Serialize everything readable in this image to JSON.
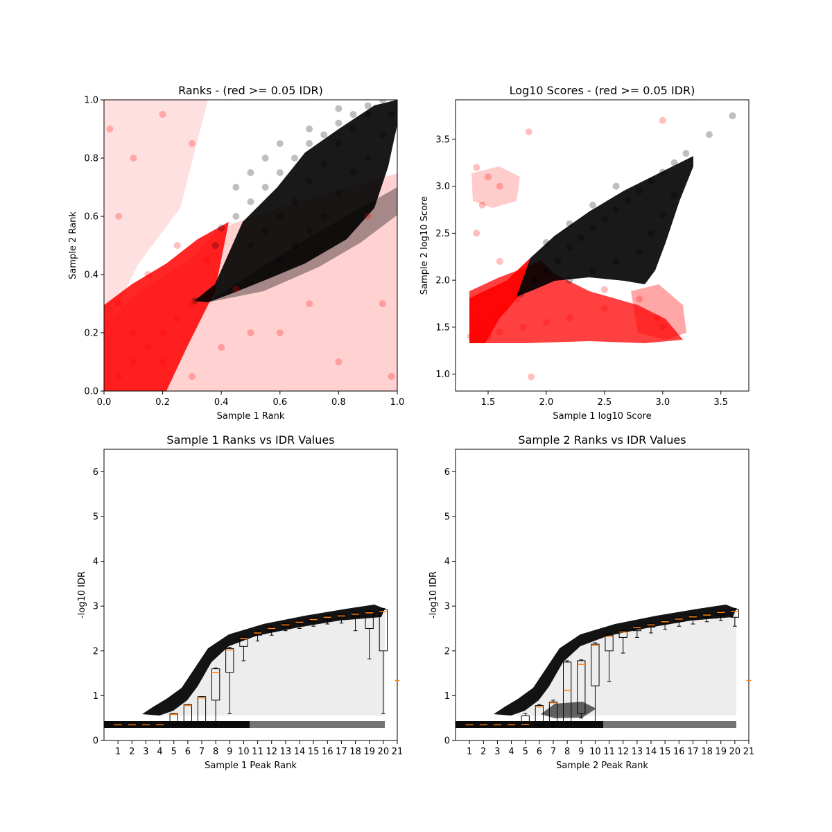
{
  "chart_data": [
    {
      "id": "ranks",
      "type": "scatter",
      "title": "Ranks - (red >= 0.05 IDR)",
      "xlabel": "Sample 1 Rank",
      "ylabel": "Sample 2 Rank",
      "xlim": [
        0.0,
        1.0
      ],
      "ylim": [
        0.0,
        1.0
      ],
      "xticks": [
        "0.0",
        "0.2",
        "0.4",
        "0.6",
        "0.8",
        "1.0"
      ],
      "yticks": [
        "0.0",
        "0.2",
        "0.4",
        "0.6",
        "0.8",
        "1.0"
      ],
      "colors": {
        "pass": "#000000",
        "fail": "#ff0000"
      },
      "series": [
        {
          "color": "#000000",
          "points": [
            [
              0.31,
              0.31
            ],
            [
              0.38,
              0.5
            ],
            [
              0.4,
              0.56
            ],
            [
              0.45,
              0.6
            ],
            [
              0.5,
              0.65
            ],
            [
              0.55,
              0.7
            ],
            [
              0.6,
              0.75
            ],
            [
              0.65,
              0.8
            ],
            [
              0.7,
              0.85
            ],
            [
              0.75,
              0.88
            ],
            [
              0.8,
              0.92
            ],
            [
              0.85,
              0.95
            ],
            [
              0.9,
              0.98
            ],
            [
              0.95,
              1.0
            ],
            [
              0.5,
              0.5
            ],
            [
              0.55,
              0.55
            ],
            [
              0.6,
              0.6
            ],
            [
              0.65,
              0.65
            ],
            [
              0.7,
              0.72
            ],
            [
              0.75,
              0.78
            ],
            [
              0.8,
              0.85
            ],
            [
              0.85,
              0.9
            ],
            [
              0.9,
              0.95
            ],
            [
              0.6,
              0.45
            ],
            [
              0.65,
              0.5
            ],
            [
              0.7,
              0.55
            ],
            [
              0.75,
              0.6
            ],
            [
              0.8,
              0.68
            ],
            [
              0.85,
              0.75
            ],
            [
              0.9,
              0.8
            ],
            [
              0.95,
              0.88
            ],
            [
              0.98,
              0.95
            ],
            [
              0.45,
              0.7
            ],
            [
              0.5,
              0.75
            ],
            [
              0.55,
              0.8
            ],
            [
              0.6,
              0.85
            ],
            [
              0.7,
              0.9
            ],
            [
              0.8,
              0.97
            ]
          ]
        },
        {
          "color": "#ff0000",
          "points": [
            [
              0.05,
              0.05
            ],
            [
              0.1,
              0.1
            ],
            [
              0.15,
              0.15
            ],
            [
              0.2,
              0.2
            ],
            [
              0.25,
              0.25
            ],
            [
              0.3,
              0.3
            ],
            [
              0.1,
              0.2
            ],
            [
              0.2,
              0.1
            ],
            [
              0.05,
              0.3
            ],
            [
              0.3,
              0.05
            ],
            [
              0.15,
              0.4
            ],
            [
              0.4,
              0.15
            ],
            [
              0.05,
              0.6
            ],
            [
              0.1,
              0.8
            ],
            [
              0.2,
              0.95
            ],
            [
              0.3,
              0.85
            ],
            [
              0.6,
              0.2
            ],
            [
              0.8,
              0.1
            ],
            [
              0.95,
              0.3
            ],
            [
              0.9,
              0.6
            ],
            [
              0.7,
              0.3
            ],
            [
              0.5,
              0.2
            ],
            [
              0.25,
              0.5
            ],
            [
              0.35,
              0.45
            ],
            [
              0.45,
              0.35
            ],
            [
              0.02,
              0.9
            ],
            [
              0.98,
              0.05
            ]
          ]
        }
      ]
    },
    {
      "id": "scores",
      "type": "scatter",
      "title": "Log10 Scores - (red >= 0.05 IDR)",
      "xlabel": "Sample 1 log10 Score",
      "ylabel": "Sample 2 log10 Score",
      "xlim": [
        1.22,
        3.74
      ],
      "ylim": [
        0.82,
        3.92
      ],
      "xticks": [
        "1.5",
        "2.0",
        "2.5",
        "3.0",
        "3.5"
      ],
      "yticks": [
        "1.0",
        "1.5",
        "2.0",
        "2.5",
        "3.0",
        "3.5"
      ],
      "series": [
        {
          "color": "#000000",
          "points": [
            [
              1.78,
              1.85
            ],
            [
              1.9,
              2.0
            ],
            [
              2.0,
              2.1
            ],
            [
              2.1,
              2.2
            ],
            [
              2.2,
              2.35
            ],
            [
              2.3,
              2.45
            ],
            [
              2.4,
              2.55
            ],
            [
              2.5,
              2.65
            ],
            [
              2.6,
              2.75
            ],
            [
              2.7,
              2.85
            ],
            [
              2.8,
              2.95
            ],
            [
              2.9,
              3.05
            ],
            [
              3.0,
              3.15
            ],
            [
              3.1,
              3.25
            ],
            [
              3.2,
              3.35
            ],
            [
              3.4,
              3.55
            ],
            [
              3.6,
              3.75
            ],
            [
              2.2,
              2.0
            ],
            [
              2.4,
              2.1
            ],
            [
              2.6,
              2.2
            ],
            [
              2.8,
              2.3
            ],
            [
              2.9,
              2.5
            ],
            [
              3.0,
              2.7
            ],
            [
              3.1,
              2.9
            ],
            [
              2.0,
              2.4
            ],
            [
              2.2,
              2.6
            ],
            [
              2.4,
              2.8
            ],
            [
              2.6,
              3.0
            ]
          ]
        },
        {
          "color": "#ff0000",
          "points": [
            [
              1.35,
              1.4
            ],
            [
              1.45,
              1.5
            ],
            [
              1.55,
              1.6
            ],
            [
              1.65,
              1.7
            ],
            [
              1.75,
              1.8
            ],
            [
              1.4,
              1.6
            ],
            [
              1.5,
              1.4
            ],
            [
              1.6,
              1.45
            ],
            [
              1.8,
              1.5
            ],
            [
              2.0,
              1.55
            ],
            [
              2.2,
              1.6
            ],
            [
              2.5,
              1.7
            ],
            [
              2.8,
              1.8
            ],
            [
              2.95,
              1.6
            ],
            [
              3.0,
              1.5
            ],
            [
              1.4,
              3.2
            ],
            [
              1.5,
              3.1
            ],
            [
              1.6,
              3.0
            ],
            [
              1.45,
              2.8
            ],
            [
              1.4,
              2.5
            ],
            [
              1.6,
              2.2
            ],
            [
              2.5,
              1.9
            ],
            [
              1.87,
              0.97
            ],
            [
              1.85,
              3.58
            ],
            [
              3.0,
              3.7
            ]
          ]
        }
      ]
    },
    {
      "id": "sample1-idr",
      "type": "scatter",
      "title": "Sample 1 Ranks vs IDR Values",
      "xlabel": "Sample 1 Peak Rank",
      "ylabel": "-log10 IDR",
      "xlim": [
        0,
        21
      ],
      "ylim": [
        0,
        6.5
      ],
      "xticks": [
        "1",
        "2",
        "3",
        "4",
        "5",
        "6",
        "7",
        "8",
        "9",
        "10",
        "11",
        "12",
        "13",
        "14",
        "15",
        "16",
        "17",
        "18",
        "19",
        "20",
        "21"
      ],
      "yticks": [
        "0",
        "1",
        "2",
        "3",
        "4",
        "5",
        "6"
      ],
      "colors": {
        "points": "#000000",
        "median": "#ff7f0e"
      },
      "boxes": [
        {
          "x": 1,
          "q1": 0.34,
          "median": 0.35,
          "q3": 0.36,
          "low": 0.34,
          "high": 0.36
        },
        {
          "x": 2,
          "q1": 0.34,
          "median": 0.35,
          "q3": 0.36,
          "low": 0.34,
          "high": 0.36
        },
        {
          "x": 3,
          "q1": 0.34,
          "median": 0.35,
          "q3": 0.36,
          "low": 0.34,
          "high": 0.36
        },
        {
          "x": 4,
          "q1": 0.34,
          "median": 0.35,
          "q3": 0.36,
          "low": 0.34,
          "high": 0.36
        },
        {
          "x": 5,
          "q1": 0.35,
          "median": 0.58,
          "q3": 0.6,
          "low": 0.33,
          "high": 0.6
        },
        {
          "x": 6,
          "q1": 0.35,
          "median": 0.78,
          "q3": 0.8,
          "low": 0.33,
          "high": 0.8
        },
        {
          "x": 7,
          "q1": 0.4,
          "median": 0.95,
          "q3": 0.98,
          "low": 0.33,
          "high": 0.98
        },
        {
          "x": 8,
          "q1": 0.9,
          "median": 1.52,
          "q3": 1.6,
          "low": 0.35,
          "high": 1.62
        },
        {
          "x": 9,
          "q1": 1.52,
          "median": 2.02,
          "q3": 2.05,
          "low": 0.6,
          "high": 2.08
        },
        {
          "x": 10,
          "q1": 2.1,
          "median": 2.28,
          "q3": 2.3,
          "low": 1.78,
          "high": 2.3
        },
        {
          "x": 11,
          "q1": 2.35,
          "median": 2.4,
          "q3": 2.42,
          "low": 2.22,
          "high": 2.45
        },
        {
          "x": 12,
          "q1": 2.45,
          "median": 2.5,
          "q3": 2.52,
          "low": 2.35,
          "high": 2.55
        },
        {
          "x": 13,
          "q1": 2.53,
          "median": 2.58,
          "q3": 2.6,
          "low": 2.45,
          "high": 2.62
        },
        {
          "x": 14,
          "q1": 2.6,
          "median": 2.64,
          "q3": 2.66,
          "low": 2.5,
          "high": 2.68
        },
        {
          "x": 15,
          "q1": 2.65,
          "median": 2.7,
          "q3": 2.72,
          "low": 2.55,
          "high": 2.74
        },
        {
          "x": 16,
          "q1": 2.7,
          "median": 2.75,
          "q3": 2.77,
          "low": 2.6,
          "high": 2.79
        },
        {
          "x": 17,
          "q1": 2.73,
          "median": 2.78,
          "q3": 2.8,
          "low": 2.62,
          "high": 2.82
        },
        {
          "x": 18,
          "q1": 2.76,
          "median": 2.82,
          "q3": 2.84,
          "low": 2.45,
          "high": 2.86
        },
        {
          "x": 19,
          "q1": 2.5,
          "median": 2.85,
          "q3": 2.87,
          "low": 1.82,
          "high": 2.9
        },
        {
          "x": 20,
          "q1": 2.0,
          "median": 2.88,
          "q3": 2.92,
          "low": 0.6,
          "high": 2.95
        }
      ],
      "extra_median_marker": {
        "x": 21,
        "median": 1.34
      }
    },
    {
      "id": "sample2-idr",
      "type": "scatter",
      "title": "Sample 2 Ranks vs IDR Values",
      "xlabel": "Sample 2 Peak Rank",
      "ylabel": "-log10 IDR",
      "xlim": [
        0,
        21
      ],
      "ylim": [
        0,
        6.5
      ],
      "xticks": [
        "1",
        "2",
        "3",
        "4",
        "5",
        "6",
        "7",
        "8",
        "9",
        "10",
        "11",
        "12",
        "13",
        "14",
        "15",
        "16",
        "17",
        "18",
        "19",
        "20",
        "21"
      ],
      "yticks": [
        "0",
        "1",
        "2",
        "3",
        "4",
        "5",
        "6"
      ],
      "colors": {
        "points": "#000000",
        "median": "#ff7f0e"
      },
      "boxes": [
        {
          "x": 1,
          "q1": 0.34,
          "median": 0.35,
          "q3": 0.36,
          "low": 0.34,
          "high": 0.36
        },
        {
          "x": 2,
          "q1": 0.34,
          "median": 0.35,
          "q3": 0.36,
          "low": 0.34,
          "high": 0.36
        },
        {
          "x": 3,
          "q1": 0.34,
          "median": 0.35,
          "q3": 0.36,
          "low": 0.34,
          "high": 0.36
        },
        {
          "x": 4,
          "q1": 0.34,
          "median": 0.35,
          "q3": 0.36,
          "low": 0.34,
          "high": 0.36
        },
        {
          "x": 5,
          "q1": 0.34,
          "median": 0.36,
          "q3": 0.55,
          "low": 0.33,
          "high": 0.6
        },
        {
          "x": 6,
          "q1": 0.35,
          "median": 0.75,
          "q3": 0.78,
          "low": 0.33,
          "high": 0.8
        },
        {
          "x": 7,
          "q1": 0.4,
          "median": 0.84,
          "q3": 0.86,
          "low": 0.33,
          "high": 0.9
        },
        {
          "x": 8,
          "q1": 0.4,
          "median": 1.12,
          "q3": 1.75,
          "low": 0.35,
          "high": 1.78
        },
        {
          "x": 9,
          "q1": 0.6,
          "median": 1.7,
          "q3": 1.78,
          "low": 0.5,
          "high": 1.8
        },
        {
          "x": 10,
          "q1": 1.22,
          "median": 2.12,
          "q3": 2.15,
          "low": 0.35,
          "high": 2.18
        },
        {
          "x": 11,
          "q1": 2.0,
          "median": 2.32,
          "q3": 2.35,
          "low": 1.32,
          "high": 2.38
        },
        {
          "x": 12,
          "q1": 2.3,
          "median": 2.42,
          "q3": 2.45,
          "low": 1.95,
          "high": 2.47
        },
        {
          "x": 13,
          "q1": 2.45,
          "median": 2.52,
          "q3": 2.54,
          "low": 2.3,
          "high": 2.56
        },
        {
          "x": 14,
          "q1": 2.53,
          "median": 2.58,
          "q3": 2.6,
          "low": 2.4,
          "high": 2.62
        },
        {
          "x": 15,
          "q1": 2.6,
          "median": 2.65,
          "q3": 2.67,
          "low": 2.48,
          "high": 2.69
        },
        {
          "x": 16,
          "q1": 2.66,
          "median": 2.71,
          "q3": 2.73,
          "low": 2.55,
          "high": 2.75
        },
        {
          "x": 17,
          "q1": 2.71,
          "median": 2.76,
          "q3": 2.78,
          "low": 2.6,
          "high": 2.8
        },
        {
          "x": 18,
          "q1": 2.75,
          "median": 2.8,
          "q3": 2.82,
          "low": 2.65,
          "high": 2.84
        },
        {
          "x": 19,
          "q1": 2.8,
          "median": 2.86,
          "q3": 2.88,
          "low": 2.68,
          "high": 2.9
        },
        {
          "x": 20,
          "q1": 2.75,
          "median": 2.88,
          "q3": 2.92,
          "low": 2.55,
          "high": 2.95
        }
      ],
      "extra_median_marker": {
        "x": 21,
        "median": 1.34
      }
    }
  ]
}
